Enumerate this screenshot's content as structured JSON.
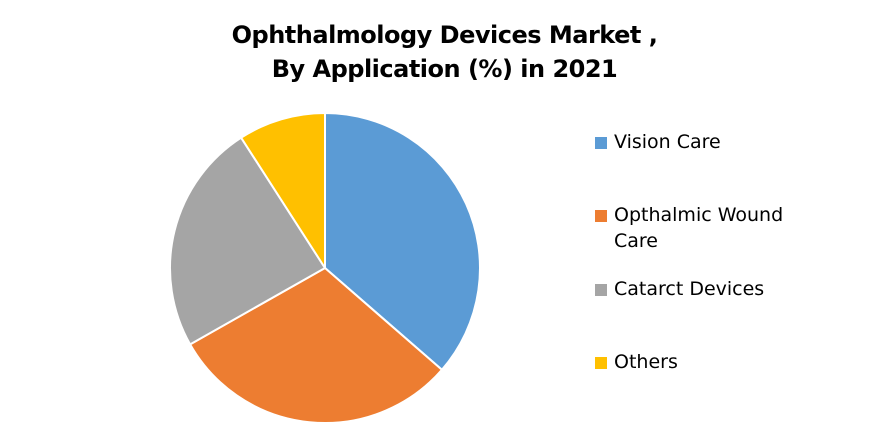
{
  "chart_data": {
    "type": "pie",
    "title": "Ophthalmology Devices Market , By Application (%) in 2021",
    "title_lines": [
      "Ophthalmology Devices Market ,",
      "By Application (%) in 2021"
    ],
    "categories": [
      "Vision Care",
      "Opthalmic Wound Care",
      "Catarct Devices",
      "Others"
    ],
    "values": [
      36.4,
      30.4,
      24.1,
      9.1
    ],
    "colors": [
      "#5B9BD5",
      "#ED7D31",
      "#A5A5A5",
      "#FFC000"
    ],
    "start_angle_deg": 0,
    "direction": "clockwise",
    "legend_position": "right",
    "data_labels": false
  },
  "legend": {
    "items": [
      {
        "label_lines": [
          "Vision Care"
        ],
        "color": "#5B9BD5"
      },
      {
        "label_lines": [
          "Opthalmic Wound",
          "Care"
        ],
        "color": "#ED7D31"
      },
      {
        "label_lines": [
          "Catarct Devices"
        ],
        "color": "#A5A5A5"
      },
      {
        "label_lines": [
          "Others"
        ],
        "color": "#FFC000"
      }
    ]
  }
}
